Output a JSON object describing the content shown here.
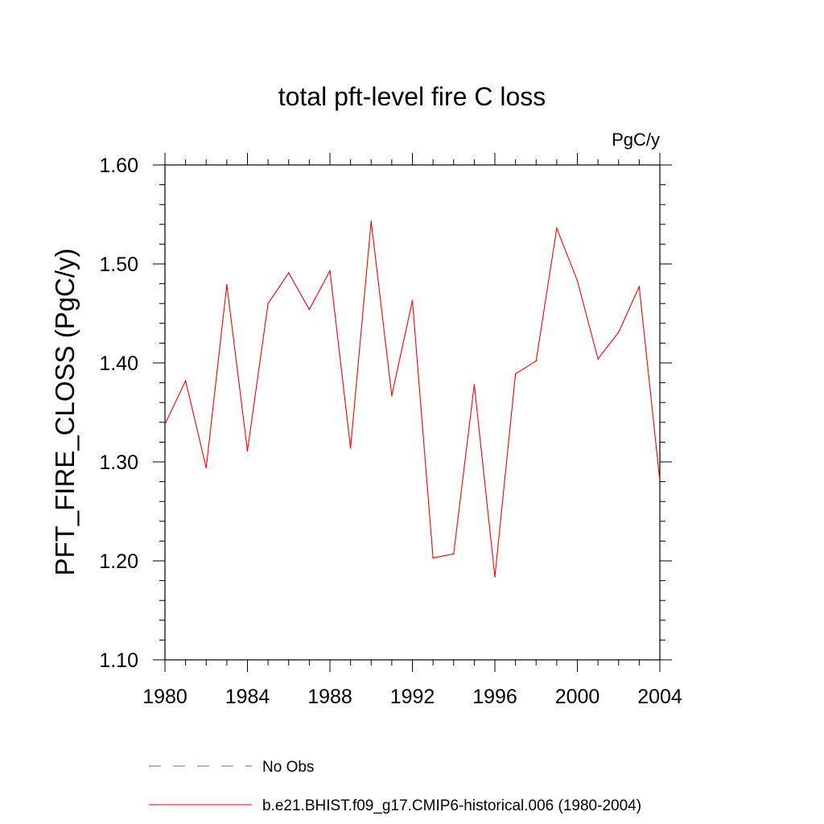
{
  "chart_data": {
    "type": "line",
    "title": "total pft-level fire C loss",
    "units_label": "PgC/y",
    "ylabel": "PFT_FIRE_CLOSS  (PgC/y)",
    "xlabel": "",
    "xlim": [
      1980,
      2004
    ],
    "ylim": [
      1.1,
      1.6
    ],
    "x_ticks": [
      "1980",
      "1984",
      "1988",
      "1992",
      "1996",
      "2000",
      "2004"
    ],
    "y_ticks": [
      "1.10",
      "1.20",
      "1.30",
      "1.40",
      "1.50",
      "1.60"
    ],
    "x": [
      1980,
      1981,
      1982,
      1983,
      1984,
      1985,
      1986,
      1987,
      1988,
      1989,
      1990,
      1991,
      1992,
      1993,
      1994,
      1995,
      1996,
      1997,
      1998,
      1999,
      2000,
      2001,
      2002,
      2003,
      2004
    ],
    "series": [
      {
        "name": "b.e21.BHIST.f09_g17.CMIP6-historical.006 (1980-2004)",
        "color": "#ff0000",
        "dash": "solid",
        "values": [
          1.338,
          1.382,
          1.294,
          1.479,
          1.311,
          1.46,
          1.491,
          1.454,
          1.493,
          1.314,
          1.543,
          1.367,
          1.463,
          1.203,
          1.207,
          1.378,
          1.184,
          1.389,
          1.402,
          1.536,
          1.483,
          1.404,
          1.431,
          1.477,
          1.281
        ]
      }
    ],
    "legend": [
      {
        "label": "No Obs",
        "color": "#6a6ab8",
        "dash": "dashed"
      },
      {
        "label": "b.e21.BHIST.f09_g17.CMIP6-historical.006 (1980-2004)",
        "color": "#ff0000",
        "dash": "solid"
      }
    ],
    "legend_position": "bottom",
    "grid": false
  }
}
